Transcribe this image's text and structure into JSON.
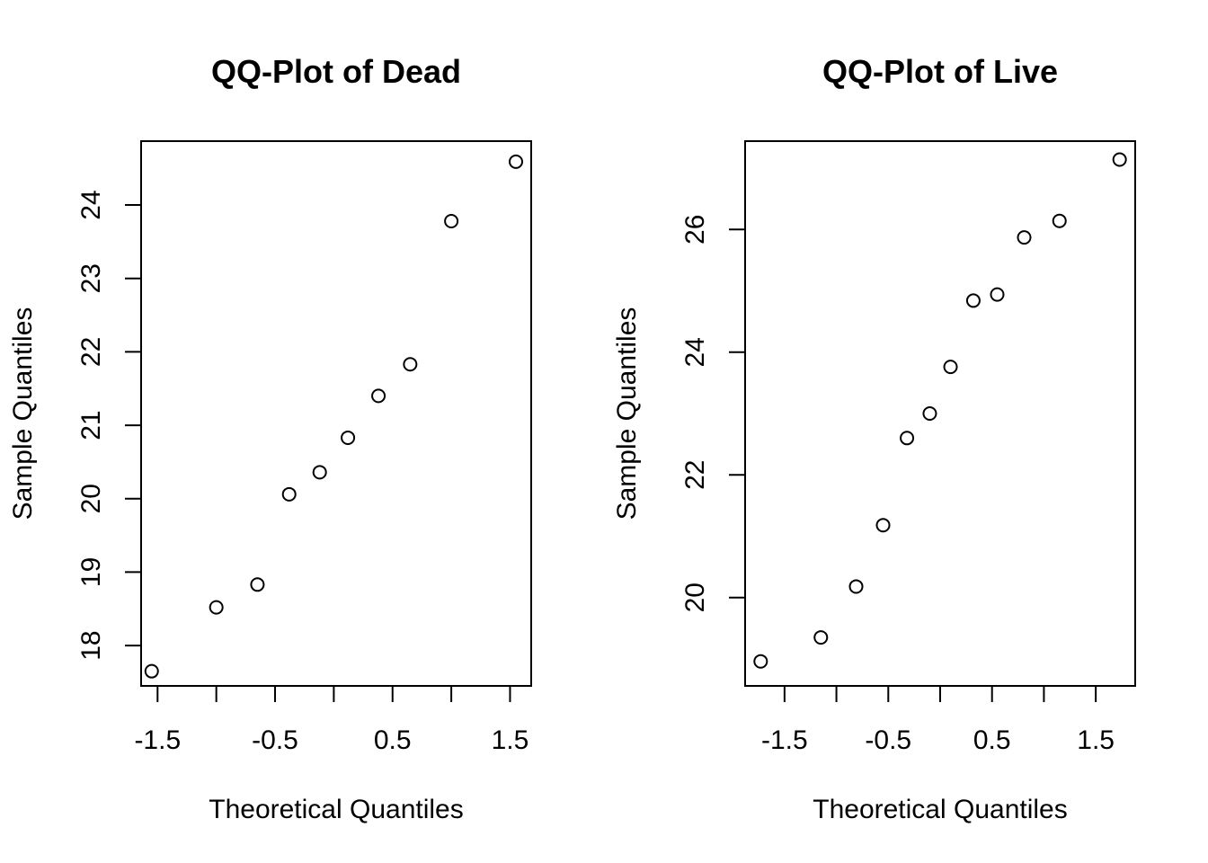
{
  "chart_data": [
    {
      "type": "scatter",
      "title": "QQ-Plot of Dead",
      "xlabel": "Theoretical Quantiles",
      "ylabel": "Sample Quantiles",
      "xlim": [
        -1.64,
        1.68
      ],
      "ylim": [
        17.45,
        24.87
      ],
      "xticks": [
        -1.5,
        -1.0,
        -0.5,
        0.0,
        0.5,
        1.0,
        1.5
      ],
      "xtick_labels": [
        "-1.5",
        "",
        "-0.5",
        "",
        "0.5",
        "",
        "1.5"
      ],
      "yticks": [
        18,
        19,
        20,
        21,
        22,
        23,
        24
      ],
      "ytick_labels": [
        "18",
        "19",
        "20",
        "21",
        "22",
        "23",
        "24"
      ],
      "grid": false,
      "x": [
        -1.55,
        -1.0,
        -0.65,
        -0.38,
        -0.12,
        0.12,
        0.38,
        0.65,
        1.0,
        1.55
      ],
      "y": [
        17.65,
        18.52,
        18.83,
        20.06,
        20.36,
        20.83,
        21.4,
        21.83,
        23.78,
        24.59
      ]
    },
    {
      "type": "scatter",
      "title": "QQ-Plot of Live",
      "xlabel": "Theoretical Quantiles",
      "ylabel": "Sample Quantiles",
      "xlim": [
        -1.88,
        1.88
      ],
      "ylim": [
        18.56,
        27.44
      ],
      "xticks": [
        -1.5,
        -1.0,
        -0.5,
        0.0,
        0.5,
        1.0,
        1.5
      ],
      "xtick_labels": [
        "-1.5",
        "",
        "-0.5",
        "",
        "0.5",
        "",
        "1.5"
      ],
      "yticks": [
        20,
        22,
        24,
        26
      ],
      "ytick_labels": [
        "20",
        "22",
        "24",
        "26"
      ],
      "grid": false,
      "x": [
        -1.73,
        -1.15,
        -0.81,
        -0.55,
        -0.32,
        -0.1,
        0.1,
        0.32,
        0.55,
        0.81,
        1.15,
        1.73
      ],
      "y": [
        18.96,
        19.35,
        20.18,
        21.18,
        22.6,
        23.0,
        23.76,
        24.84,
        24.94,
        25.87,
        26.14,
        27.14
      ]
    }
  ]
}
